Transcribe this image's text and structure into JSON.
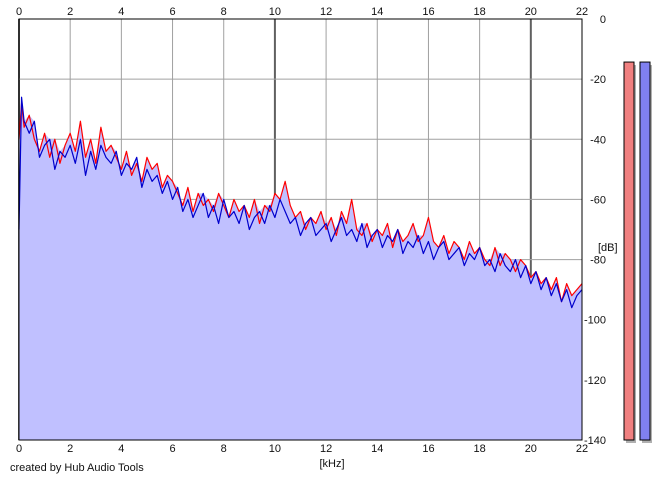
{
  "credit": "created by Hub Audio Tools",
  "chart_data": {
    "type": "area",
    "xlabel": "[kHz]",
    "ylabel": "[dB]",
    "xlim": [
      0,
      22
    ],
    "ylim": [
      -140,
      0
    ],
    "x_ticks": [
      "0",
      "2",
      "4",
      "6",
      "8",
      "10",
      "12",
      "14",
      "16",
      "18",
      "20",
      "22"
    ],
    "y_ticks": [
      "0",
      "-20",
      "-40",
      "-60",
      "-80",
      "-100",
      "-120",
      "-140"
    ],
    "grid": true,
    "fill_color": "#c0c0ff",
    "series": [
      {
        "color": "#ff0000",
        "x": [
          0,
          0.1,
          0.2,
          0.4,
          0.6,
          0.8,
          1,
          1.2,
          1.4,
          1.6,
          1.8,
          2,
          2.2,
          2.4,
          2.6,
          2.8,
          3,
          3.2,
          3.4,
          3.6,
          3.8,
          4,
          4.2,
          4.4,
          4.6,
          4.8,
          5,
          5.2,
          5.4,
          5.6,
          5.8,
          6,
          6.2,
          6.4,
          6.6,
          6.8,
          7,
          7.2,
          7.4,
          7.6,
          7.8,
          8,
          8.2,
          8.4,
          8.6,
          8.8,
          9,
          9.2,
          9.4,
          9.6,
          9.8,
          10,
          10.2,
          10.4,
          10.6,
          10.8,
          11,
          11.2,
          11.4,
          11.6,
          11.8,
          12,
          12.2,
          12.4,
          12.6,
          12.8,
          13,
          13.2,
          13.4,
          13.6,
          13.8,
          14,
          14.2,
          14.4,
          14.6,
          14.8,
          15,
          15.2,
          15.4,
          15.6,
          15.8,
          16,
          16.2,
          16.4,
          16.6,
          16.8,
          17,
          17.2,
          17.4,
          17.6,
          17.8,
          18,
          18.2,
          18.4,
          18.6,
          18.8,
          19,
          19.2,
          19.4,
          19.6,
          19.8,
          20,
          20.2,
          20.4,
          20.6,
          20.8,
          21,
          21.2,
          21.4,
          21.6,
          21.8,
          22
        ],
        "y": [
          -40,
          -28,
          -36,
          -32,
          -40,
          -44,
          -38,
          -46,
          -40,
          -48,
          -42,
          -38,
          -44,
          -34,
          -46,
          -40,
          -48,
          -36,
          -44,
          -42,
          -46,
          -50,
          -44,
          -52,
          -48,
          -54,
          -46,
          -50,
          -48,
          -56,
          -52,
          -54,
          -58,
          -62,
          -56,
          -64,
          -58,
          -62,
          -60,
          -64,
          -58,
          -62,
          -66,
          -60,
          -64,
          -62,
          -66,
          -60,
          -68,
          -62,
          -64,
          -58,
          -60,
          -54,
          -62,
          -66,
          -64,
          -70,
          -66,
          -68,
          -64,
          -70,
          -66,
          -72,
          -64,
          -68,
          -60,
          -70,
          -72,
          -68,
          -74,
          -70,
          -72,
          -68,
          -76,
          -70,
          -74,
          -72,
          -68,
          -74,
          -72,
          -66,
          -74,
          -76,
          -72,
          -78,
          -74,
          -76,
          -80,
          -74,
          -78,
          -76,
          -80,
          -82,
          -76,
          -82,
          -78,
          -80,
          -84,
          -80,
          -82,
          -86,
          -84,
          -88,
          -86,
          -90,
          -86,
          -94,
          -88,
          -92,
          -90,
          -88
        ]
      },
      {
        "color": "#0000cc",
        "x": [
          0,
          0.1,
          0.2,
          0.4,
          0.6,
          0.8,
          1,
          1.2,
          1.4,
          1.6,
          1.8,
          2,
          2.2,
          2.4,
          2.6,
          2.8,
          3,
          3.2,
          3.4,
          3.6,
          3.8,
          4,
          4.2,
          4.4,
          4.6,
          4.8,
          5,
          5.2,
          5.4,
          5.6,
          5.8,
          6,
          6.2,
          6.4,
          6.6,
          6.8,
          7,
          7.2,
          7.4,
          7.6,
          7.8,
          8,
          8.2,
          8.4,
          8.6,
          8.8,
          9,
          9.2,
          9.4,
          9.6,
          9.8,
          10,
          10.2,
          10.4,
          10.6,
          10.8,
          11,
          11.2,
          11.4,
          11.6,
          11.8,
          12,
          12.2,
          12.4,
          12.6,
          12.8,
          13,
          13.2,
          13.4,
          13.6,
          13.8,
          14,
          14.2,
          14.4,
          14.6,
          14.8,
          15,
          15.2,
          15.4,
          15.6,
          15.8,
          16,
          16.2,
          16.4,
          16.6,
          16.8,
          17,
          17.2,
          17.4,
          17.6,
          17.8,
          18,
          18.2,
          18.4,
          18.6,
          18.8,
          19,
          19.2,
          19.4,
          19.6,
          19.8,
          20,
          20.2,
          20.4,
          20.6,
          20.8,
          21,
          21.2,
          21.4,
          21.6,
          21.8,
          22
        ],
        "y": [
          -70,
          -26,
          -34,
          -38,
          -34,
          -46,
          -42,
          -40,
          -50,
          -44,
          -46,
          -42,
          -48,
          -40,
          -52,
          -44,
          -50,
          -42,
          -46,
          -48,
          -44,
          -52,
          -48,
          -50,
          -46,
          -56,
          -50,
          -54,
          -52,
          -58,
          -54,
          -60,
          -56,
          -64,
          -60,
          -66,
          -62,
          -58,
          -66,
          -62,
          -68,
          -60,
          -66,
          -64,
          -68,
          -62,
          -70,
          -66,
          -64,
          -68,
          -62,
          -66,
          -60,
          -64,
          -68,
          -66,
          -72,
          -68,
          -66,
          -72,
          -70,
          -68,
          -74,
          -70,
          -66,
          -72,
          -70,
          -74,
          -68,
          -76,
          -72,
          -70,
          -76,
          -72,
          -74,
          -70,
          -78,
          -74,
          -76,
          -72,
          -78,
          -74,
          -80,
          -76,
          -74,
          -80,
          -78,
          -76,
          -82,
          -78,
          -80,
          -76,
          -82,
          -80,
          -84,
          -78,
          -82,
          -84,
          -80,
          -86,
          -82,
          -88,
          -84,
          -90,
          -86,
          -92,
          -88,
          -94,
          -90,
          -96,
          -92,
          -90
        ]
      }
    ],
    "meters": [
      {
        "color": "#f08080",
        "value": -7
      },
      {
        "color": "#8080f0",
        "value": -7
      }
    ]
  }
}
